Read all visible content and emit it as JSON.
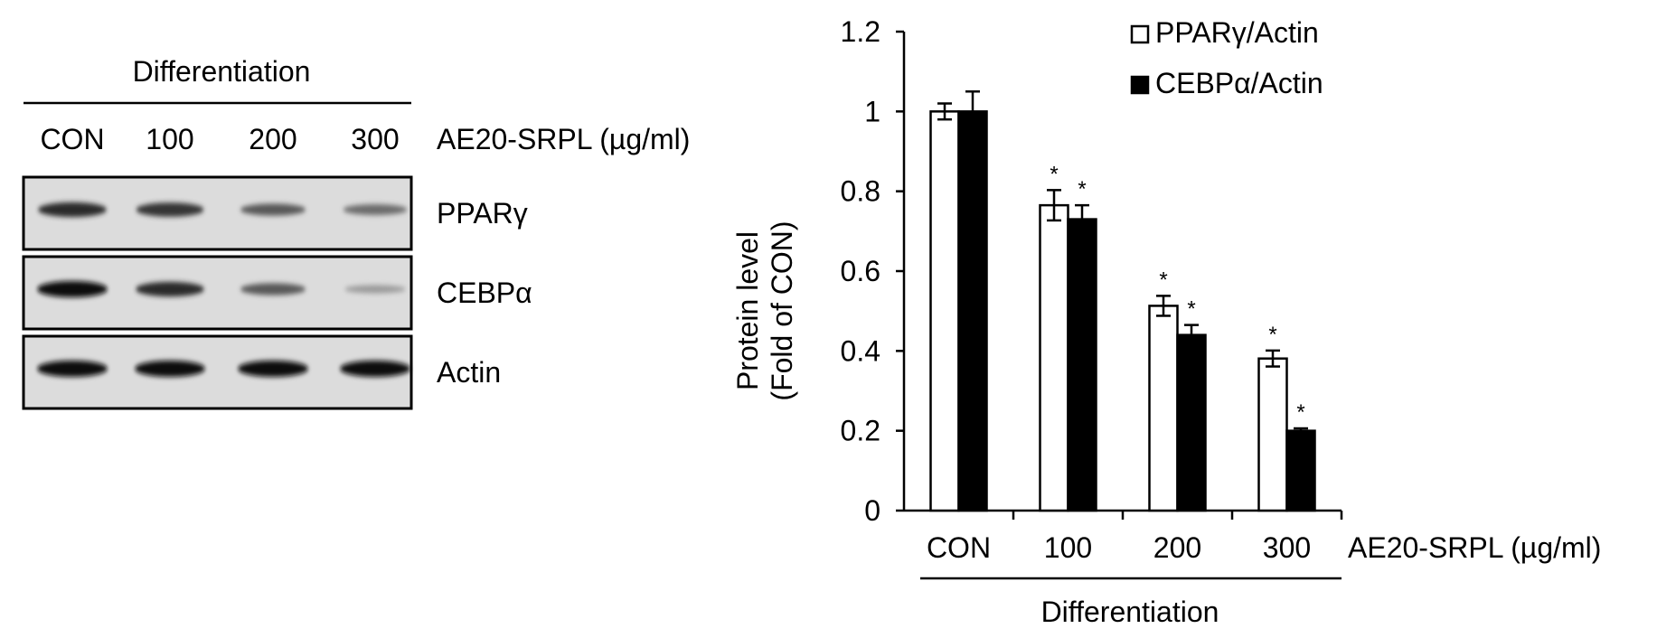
{
  "western_blot": {
    "group_label": "Differentiation",
    "lanes": [
      "CON",
      "100",
      "200",
      "300"
    ],
    "treatment_label": "AE20-SRPL (µg/ml)",
    "proteins": [
      {
        "name": "PPARγ",
        "band_intensity": [
          0.85,
          0.8,
          0.6,
          0.5
        ]
      },
      {
        "name": "CEBPα",
        "band_intensity": [
          1.0,
          0.85,
          0.6,
          0.25
        ]
      },
      {
        "name": "Actin",
        "band_intensity": [
          1.0,
          1.0,
          1.0,
          1.0
        ]
      }
    ]
  },
  "chart_data": {
    "type": "bar",
    "categories": [
      "CON",
      "100",
      "200",
      "300"
    ],
    "ylabel_line1": "Protein level",
    "ylabel_line2": "(Fold of CON)",
    "xlabel": "AE20-SRPL (µg/ml)",
    "group_label": "Differentiation",
    "ylim": [
      0,
      1.2
    ],
    "yticks": [
      "0",
      "0.2",
      "0.4",
      "0.6",
      "0.8",
      "1",
      "1.2"
    ],
    "legend_position": "top-right",
    "series": [
      {
        "name": "PPARγ/Actin",
        "color": "#ffffff",
        "values": [
          1.0,
          0.765,
          0.513,
          0.381
        ],
        "errors": [
          0.02,
          0.038,
          0.025,
          0.02
        ],
        "significance": [
          "",
          "*",
          "*",
          "*"
        ]
      },
      {
        "name": "CEBPα/Actin",
        "color": "#000000",
        "values": [
          1.0,
          0.73,
          0.44,
          0.2
        ],
        "errors": [
          0.05,
          0.035,
          0.025,
          0.006
        ],
        "significance": [
          "",
          "*",
          "*",
          "*"
        ]
      }
    ]
  }
}
